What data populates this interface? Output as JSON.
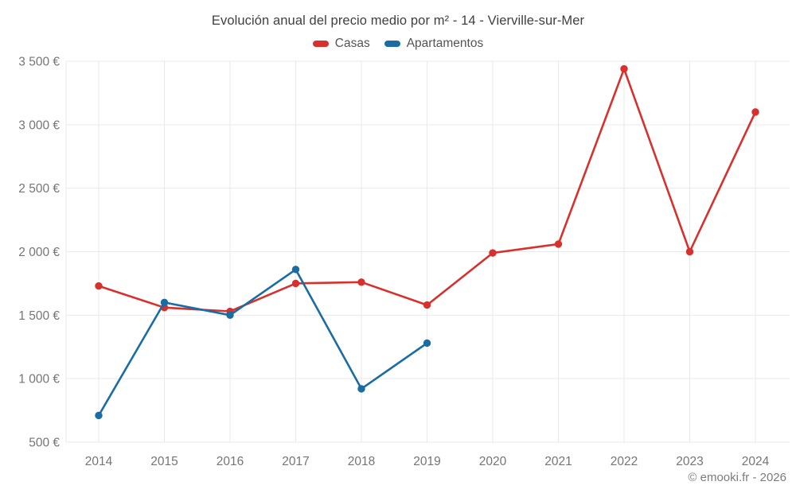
{
  "title": "Evolución anual del precio medio por m² - 14 - Vierville-sur-Mer",
  "legend": {
    "items": [
      {
        "label": "Casas",
        "color": "#d7312e"
      },
      {
        "label": "Apartamentos",
        "color": "#1a6ca3"
      }
    ]
  },
  "footer": {
    "copyright": "© emooki.fr - 2026"
  },
  "colors": {
    "casas": "#d7312e",
    "apartamentos": "#1a6ca3",
    "gridline": "#e9e9e9",
    "axis_text": "#757575",
    "title_text": "#3f3f3f"
  },
  "chart_data": {
    "type": "line",
    "title": "Evolución anual del precio medio por m² - 14 - Vierville-sur-Mer",
    "categories": [
      "2014",
      "2015",
      "2016",
      "2017",
      "2018",
      "2019",
      "2020",
      "2021",
      "2022",
      "2023",
      "2024"
    ],
    "series": [
      {
        "name": "Casas",
        "color": "#d7312e",
        "values": [
          1730,
          1560,
          1530,
          1750,
          1760,
          1580,
          1990,
          2060,
          3440,
          2000,
          3100
        ]
      },
      {
        "name": "Apartamentos",
        "color": "#1a6ca3",
        "values": [
          710,
          1600,
          1500,
          1860,
          920,
          1280,
          null,
          null,
          null,
          null,
          null
        ]
      }
    ],
    "xlabel": "",
    "ylabel": "",
    "ylim": [
      500,
      3500
    ],
    "y_ticks": [
      500,
      1000,
      1500,
      2000,
      2500,
      3000,
      3500
    ],
    "y_tick_labels": [
      "500 €",
      "1 000 €",
      "1 500 €",
      "2 000 €",
      "2 500 €",
      "3 000 €",
      "3 500 €"
    ],
    "grid": true,
    "legend_position": "top",
    "currency": "€"
  }
}
